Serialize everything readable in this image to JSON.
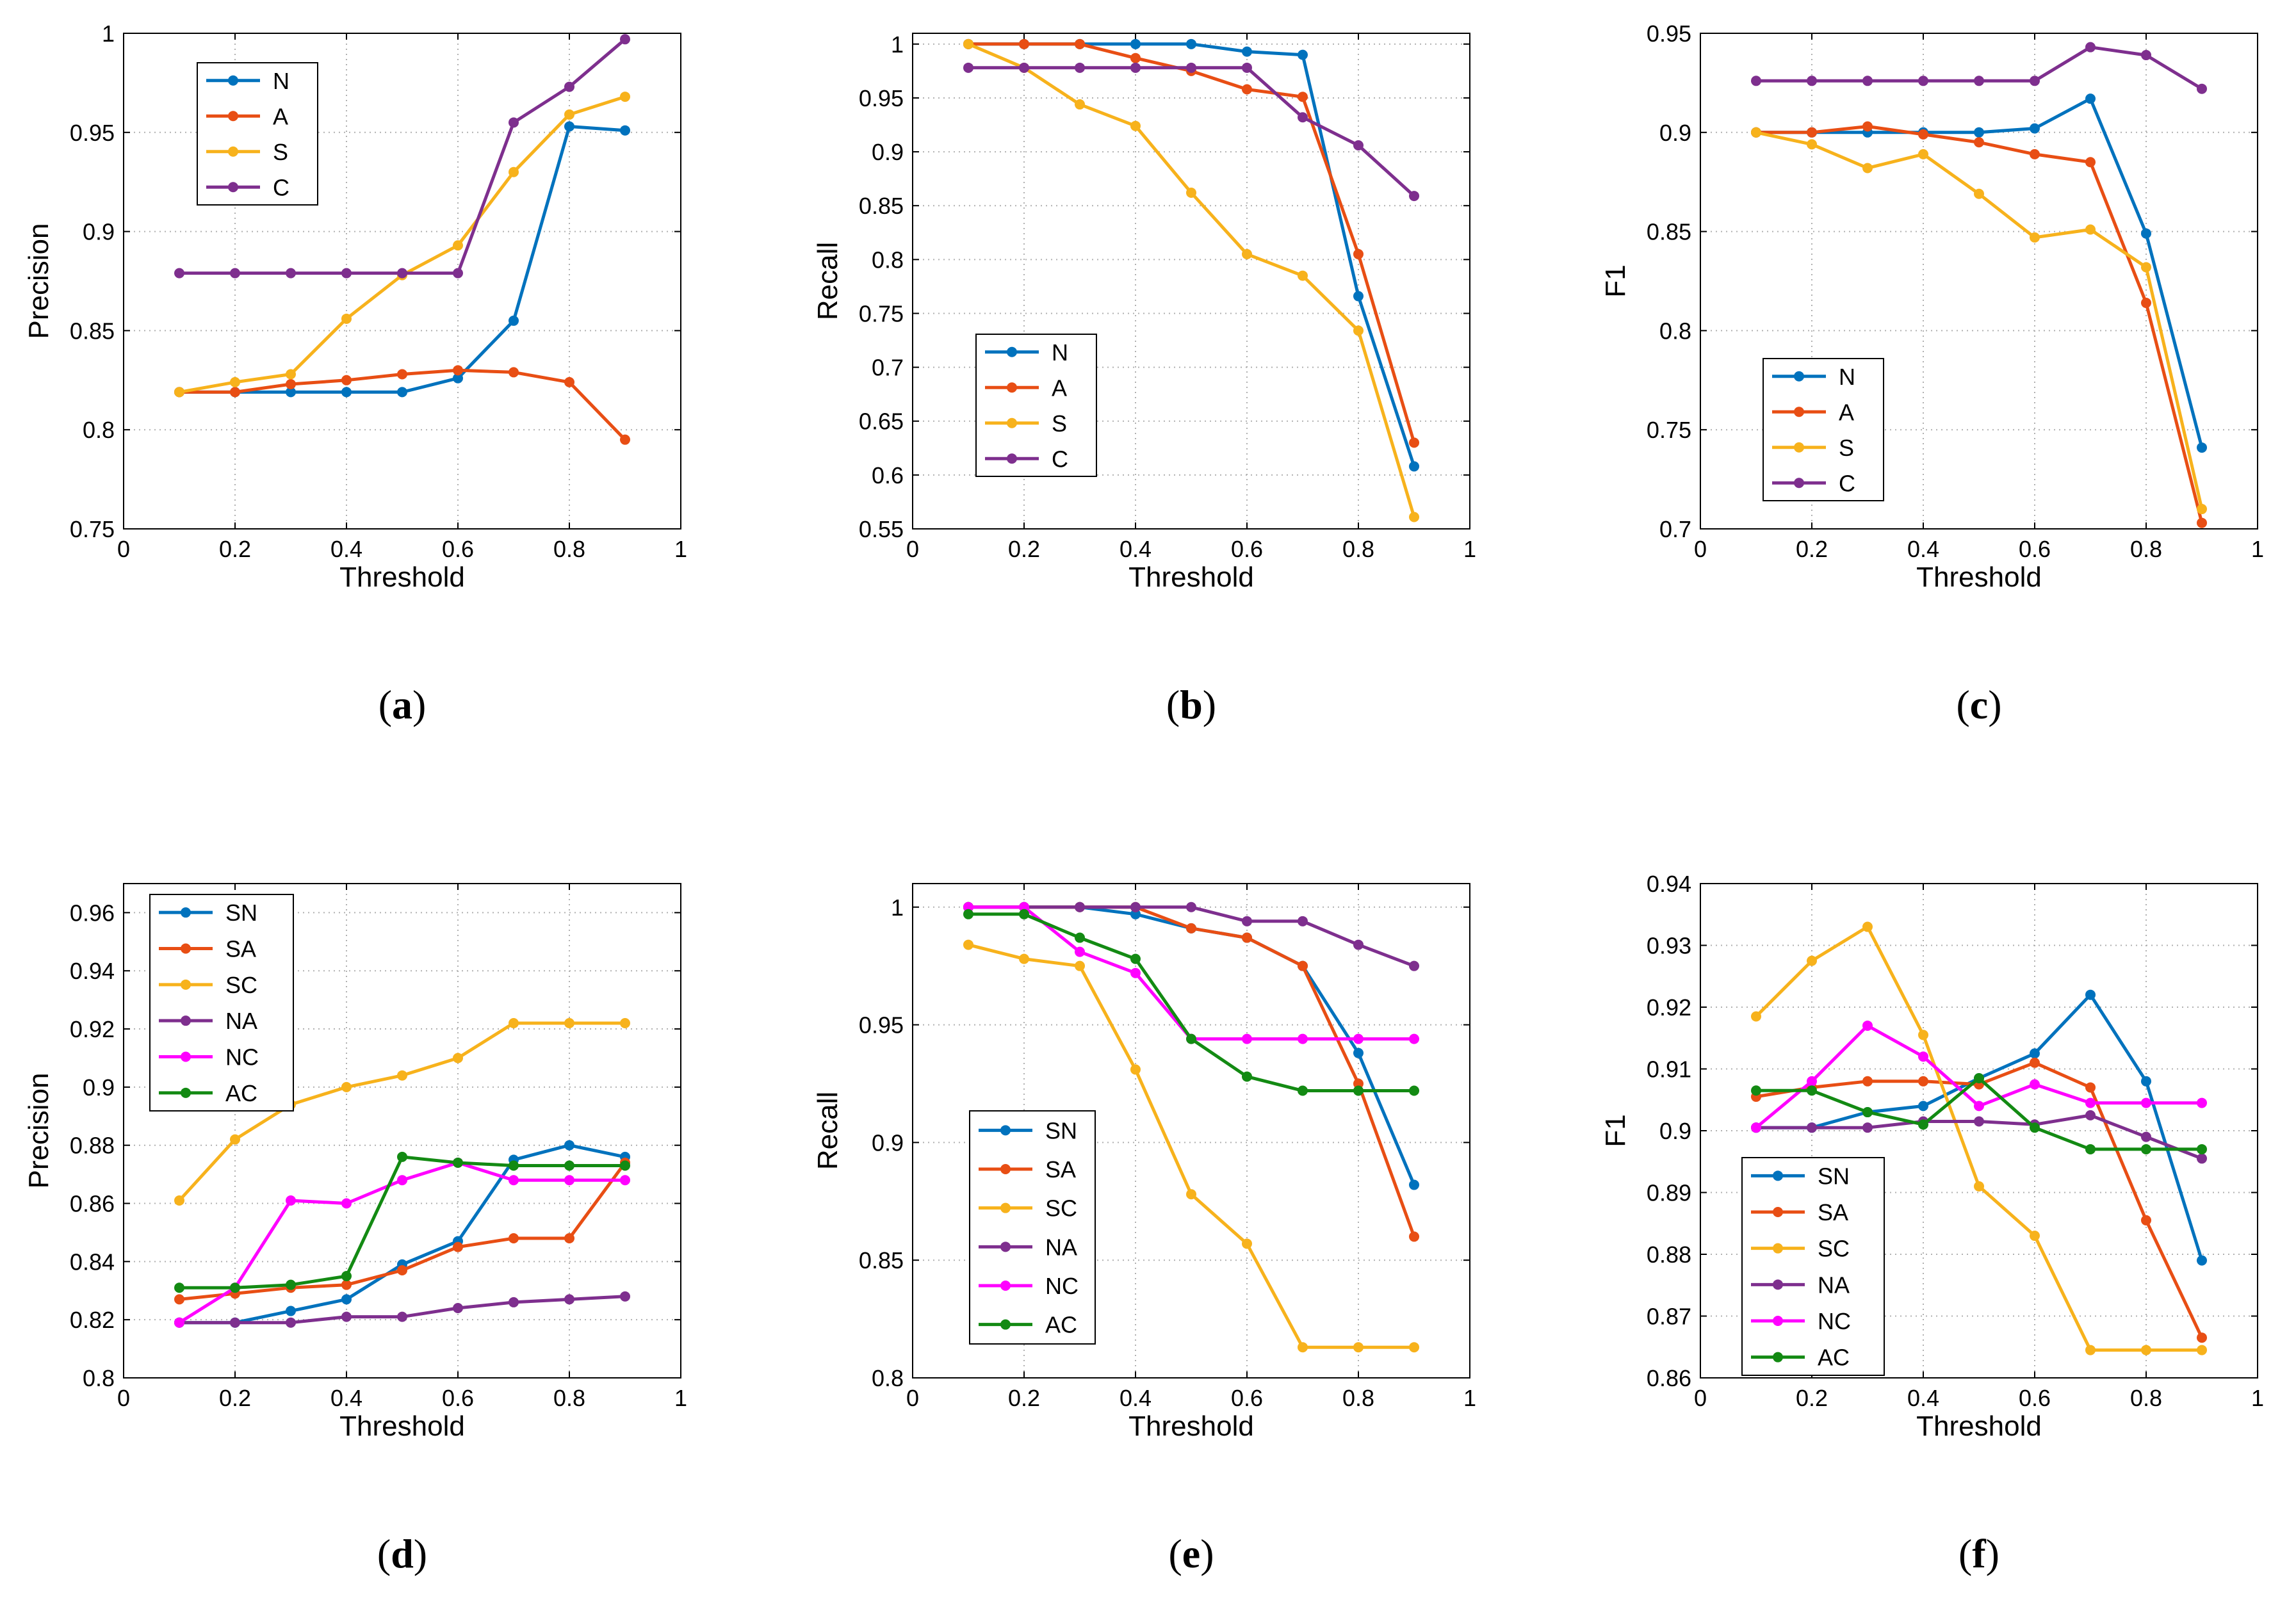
{
  "colors": {
    "N": "#0072bd",
    "A": "#e84e14",
    "S": "#f7b21c",
    "C": "#7e2f8e",
    "SN": "#0072bd",
    "SA": "#e84e14",
    "SC": "#f7b21c",
    "NA": "#7e2f8e",
    "NC": "#ff00ff",
    "AC": "#138a13",
    "grid": "#b0b0b0",
    "axis": "#000000"
  },
  "chart_data": [
    {
      "panel": "(a)",
      "panel_letter": "a",
      "type": "line",
      "xlabel": "Threshold",
      "ylabel": "Precision",
      "xlim": [
        0,
        1
      ],
      "ylim": [
        0.75,
        1
      ],
      "xticks": [
        0,
        0.2,
        0.4,
        0.6,
        0.8,
        1
      ],
      "xtick_labels": [
        "0",
        "0.2",
        "0.4",
        "0.6",
        "0.8",
        "1"
      ],
      "yticks": [
        0.75,
        0.8,
        0.85,
        0.9,
        0.95,
        1
      ],
      "ytick_labels": [
        "0.75",
        "0.8",
        "0.85",
        "0.9",
        "0.95",
        "1"
      ],
      "legend_position": "top-left",
      "x": [
        0.1,
        0.2,
        0.3,
        0.4,
        0.5,
        0.6,
        0.7,
        0.8,
        0.9
      ],
      "series": [
        {
          "name": "N",
          "values": [
            0.819,
            0.819,
            0.819,
            0.819,
            0.819,
            0.826,
            0.855,
            0.953,
            0.951
          ]
        },
        {
          "name": "A",
          "values": [
            0.819,
            0.819,
            0.823,
            0.825,
            0.828,
            0.83,
            0.829,
            0.824,
            0.795
          ]
        },
        {
          "name": "S",
          "values": [
            0.819,
            0.824,
            0.828,
            0.856,
            0.878,
            0.893,
            0.93,
            0.959,
            0.968
          ]
        },
        {
          "name": "C",
          "values": [
            0.879,
            0.879,
            0.879,
            0.879,
            0.879,
            0.879,
            0.955,
            0.973,
            0.997
          ]
        }
      ]
    },
    {
      "panel": "(b)",
      "panel_letter": "b",
      "type": "line",
      "xlabel": "Threshold",
      "ylabel": "Recall",
      "xlim": [
        0,
        1
      ],
      "ylim": [
        0.55,
        1.01
      ],
      "xticks": [
        0,
        0.2,
        0.4,
        0.6,
        0.8,
        1
      ],
      "xtick_labels": [
        "0",
        "0.2",
        "0.4",
        "0.6",
        "0.8",
        "1"
      ],
      "yticks": [
        0.55,
        0.6,
        0.65,
        0.7,
        0.75,
        0.8,
        0.85,
        0.9,
        0.95,
        1
      ],
      "ytick_labels": [
        "0.55",
        "0.6",
        "0.65",
        "0.7",
        "0.75",
        "0.8",
        "0.85",
        "0.9",
        "0.95",
        "1"
      ],
      "legend_position": "bottom-left",
      "x": [
        0.1,
        0.2,
        0.3,
        0.4,
        0.5,
        0.6,
        0.7,
        0.8,
        0.9
      ],
      "series": [
        {
          "name": "N",
          "values": [
            1.0,
            1.0,
            1.0,
            1.0,
            1.0,
            0.993,
            0.99,
            0.766,
            0.608
          ]
        },
        {
          "name": "A",
          "values": [
            1.0,
            1.0,
            1.0,
            0.987,
            0.975,
            0.958,
            0.951,
            0.805,
            0.63
          ]
        },
        {
          "name": "S",
          "values": [
            1.0,
            0.978,
            0.944,
            0.924,
            0.862,
            0.805,
            0.785,
            0.734,
            0.561
          ]
        },
        {
          "name": "C",
          "values": [
            0.978,
            0.978,
            0.978,
            0.978,
            0.978,
            0.978,
            0.932,
            0.906,
            0.859
          ]
        }
      ]
    },
    {
      "panel": "(c)",
      "panel_letter": "c",
      "type": "line",
      "xlabel": "Threshold",
      "ylabel": "F1",
      "xlim": [
        0,
        1
      ],
      "ylim": [
        0.7,
        0.95
      ],
      "xticks": [
        0,
        0.2,
        0.4,
        0.6,
        0.8,
        1
      ],
      "xtick_labels": [
        "0",
        "0.2",
        "0.4",
        "0.6",
        "0.8",
        "1"
      ],
      "yticks": [
        0.7,
        0.75,
        0.8,
        0.85,
        0.9,
        0.95
      ],
      "ytick_labels": [
        "0.7",
        "0.75",
        "0.8",
        "0.85",
        "0.9",
        "0.95"
      ],
      "legend_position": "bottom-left",
      "x": [
        0.1,
        0.2,
        0.3,
        0.4,
        0.5,
        0.6,
        0.7,
        0.8,
        0.9
      ],
      "series": [
        {
          "name": "N",
          "values": [
            0.9,
            0.9,
            0.9,
            0.9,
            0.9,
            0.902,
            0.917,
            0.849,
            0.741
          ]
        },
        {
          "name": "A",
          "values": [
            0.9,
            0.9,
            0.903,
            0.899,
            0.895,
            0.889,
            0.885,
            0.814,
            0.703
          ]
        },
        {
          "name": "S",
          "values": [
            0.9,
            0.894,
            0.882,
            0.889,
            0.869,
            0.847,
            0.851,
            0.832,
            0.71
          ]
        },
        {
          "name": "C",
          "values": [
            0.926,
            0.926,
            0.926,
            0.926,
            0.926,
            0.926,
            0.943,
            0.939,
            0.922
          ]
        }
      ]
    },
    {
      "panel": "(d)",
      "panel_letter": "d",
      "type": "line",
      "xlabel": "Threshold",
      "ylabel": "Precision",
      "xlim": [
        0,
        1
      ],
      "ylim": [
        0.8,
        0.97
      ],
      "xticks": [
        0,
        0.2,
        0.4,
        0.6,
        0.8,
        1
      ],
      "xtick_labels": [
        "0",
        "0.2",
        "0.4",
        "0.6",
        "0.8",
        "1"
      ],
      "yticks": [
        0.8,
        0.82,
        0.84,
        0.86,
        0.88,
        0.9,
        0.92,
        0.94,
        0.96
      ],
      "ytick_labels": [
        "0.8",
        "0.82",
        "0.84",
        "0.86",
        "0.88",
        "0.9",
        "0.92",
        "0.94",
        "0.96"
      ],
      "legend_position": "top-left",
      "x": [
        0.1,
        0.2,
        0.3,
        0.4,
        0.5,
        0.6,
        0.7,
        0.8,
        0.9
      ],
      "series": [
        {
          "name": "SN",
          "values": [
            0.819,
            0.819,
            0.823,
            0.827,
            0.839,
            0.847,
            0.875,
            0.88,
            0.876
          ]
        },
        {
          "name": "SA",
          "values": [
            0.827,
            0.829,
            0.831,
            0.832,
            0.837,
            0.845,
            0.848,
            0.848,
            0.874
          ]
        },
        {
          "name": "SC",
          "values": [
            0.861,
            0.882,
            0.894,
            0.9,
            0.904,
            0.91,
            0.922,
            0.922,
            0.922
          ]
        },
        {
          "name": "NA",
          "values": [
            0.819,
            0.819,
            0.819,
            0.821,
            0.821,
            0.824,
            0.826,
            0.827,
            0.828
          ]
        },
        {
          "name": "NC",
          "values": [
            0.819,
            0.831,
            0.861,
            0.86,
            0.868,
            0.874,
            0.868,
            0.868,
            0.868
          ]
        },
        {
          "name": "AC",
          "values": [
            0.831,
            0.831,
            0.832,
            0.835,
            0.876,
            0.874,
            0.873,
            0.873,
            0.873
          ]
        }
      ]
    },
    {
      "panel": "(e)",
      "panel_letter": "e",
      "type": "line",
      "xlabel": "Threshold",
      "ylabel": "Recall",
      "xlim": [
        0,
        1
      ],
      "ylim": [
        0.8,
        1.01
      ],
      "xticks": [
        0,
        0.2,
        0.4,
        0.6,
        0.8,
        1
      ],
      "xtick_labels": [
        "0",
        "0.2",
        "0.4",
        "0.6",
        "0.8",
        "1"
      ],
      "yticks": [
        0.8,
        0.85,
        0.9,
        0.95,
        1
      ],
      "ytick_labels": [
        "0.8",
        "0.85",
        "0.9",
        "0.95",
        "1"
      ],
      "legend_position": "bottom-left",
      "x": [
        0.1,
        0.2,
        0.3,
        0.4,
        0.5,
        0.6,
        0.7,
        0.8,
        0.9
      ],
      "series": [
        {
          "name": "SN",
          "values": [
            1.0,
            1.0,
            1.0,
            0.997,
            0.991,
            0.987,
            0.975,
            0.938,
            0.882
          ]
        },
        {
          "name": "SA",
          "values": [
            1.0,
            1.0,
            1.0,
            1.0,
            0.991,
            0.987,
            0.975,
            0.925,
            0.86
          ]
        },
        {
          "name": "SC",
          "values": [
            0.984,
            0.978,
            0.975,
            0.931,
            0.878,
            0.857,
            0.813,
            0.813,
            0.813
          ]
        },
        {
          "name": "NA",
          "values": [
            1.0,
            1.0,
            1.0,
            1.0,
            1.0,
            0.994,
            0.994,
            0.984,
            0.975
          ]
        },
        {
          "name": "NC",
          "values": [
            1.0,
            1.0,
            0.981,
            0.972,
            0.944,
            0.944,
            0.944,
            0.944,
            0.944
          ]
        },
        {
          "name": "AC",
          "values": [
            0.997,
            0.997,
            0.987,
            0.978,
            0.944,
            0.928,
            0.922,
            0.922,
            0.922
          ]
        }
      ]
    },
    {
      "panel": "(f)",
      "panel_letter": "f",
      "type": "line",
      "xlabel": "Threshold",
      "ylabel": "F1",
      "xlim": [
        0,
        1
      ],
      "ylim": [
        0.86,
        0.94
      ],
      "xticks": [
        0,
        0.2,
        0.4,
        0.6,
        0.8,
        1
      ],
      "xtick_labels": [
        "0",
        "0.2",
        "0.4",
        "0.6",
        "0.8",
        "1"
      ],
      "yticks": [
        0.86,
        0.87,
        0.88,
        0.89,
        0.9,
        0.91,
        0.92,
        0.93,
        0.94
      ],
      "ytick_labels": [
        "0.86",
        "0.87",
        "0.88",
        "0.89",
        "0.9",
        "0.91",
        "0.92",
        "0.93",
        "0.94"
      ],
      "legend_position": "bottom-left",
      "x": [
        0.1,
        0.2,
        0.3,
        0.4,
        0.5,
        0.6,
        0.7,
        0.8,
        0.9
      ],
      "series": [
        {
          "name": "SN",
          "values": [
            0.9005,
            0.9005,
            0.903,
            0.904,
            0.9085,
            0.9125,
            0.922,
            0.908,
            0.879
          ]
        },
        {
          "name": "SA",
          "values": [
            0.9055,
            0.907,
            0.908,
            0.908,
            0.9075,
            0.911,
            0.907,
            0.8855,
            0.8665
          ]
        },
        {
          "name": "SC",
          "values": [
            0.9185,
            0.9275,
            0.933,
            0.9155,
            0.891,
            0.883,
            0.8645,
            0.8645,
            0.8645
          ]
        },
        {
          "name": "NA",
          "values": [
            0.9005,
            0.9005,
            0.9005,
            0.9015,
            0.9015,
            0.901,
            0.9025,
            0.899,
            0.8955
          ]
        },
        {
          "name": "NC",
          "values": [
            0.9005,
            0.908,
            0.917,
            0.912,
            0.904,
            0.9075,
            0.9045,
            0.9045,
            0.9045
          ]
        },
        {
          "name": "AC",
          "values": [
            0.9065,
            0.9065,
            0.903,
            0.901,
            0.9085,
            0.9005,
            0.897,
            0.897,
            0.897
          ]
        }
      ]
    }
  ]
}
